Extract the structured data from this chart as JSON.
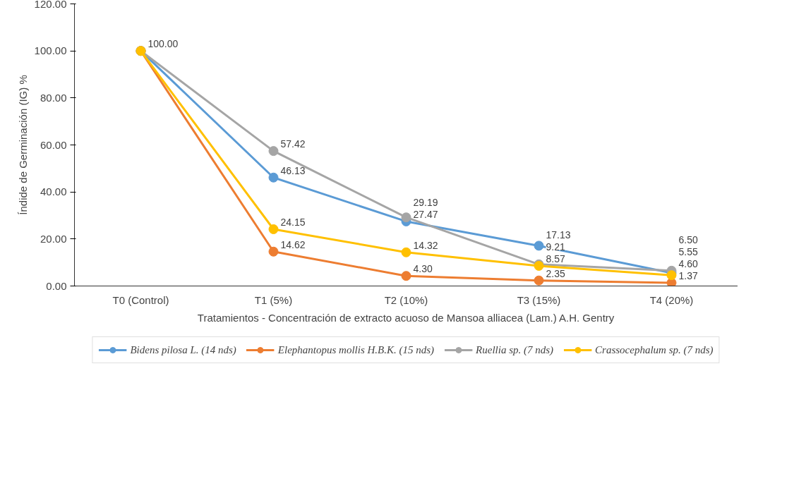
{
  "chart_data": {
    "type": "line",
    "xlabel": "Tratamientos - Concentración de extracto acuoso de Mansoa alliacea (Lam.) A.H. Gentry",
    "ylabel": "Índide de Germinación (IG) %",
    "categories": [
      "T0 (Control)",
      "T1 (5%)",
      "T2 (10%)",
      "T3 (15%)",
      "T4 (20%)"
    ],
    "ylim": [
      0,
      120
    ],
    "yticks": [
      {
        "value": 0,
        "label": "0.00"
      },
      {
        "value": 20,
        "label": "20.00"
      },
      {
        "value": 40,
        "label": "40.00"
      },
      {
        "value": 60,
        "label": "60.00"
      },
      {
        "value": 80,
        "label": "80.00"
      },
      {
        "value": 100,
        "label": "100.00"
      },
      {
        "value": 120,
        "label": "120.00"
      }
    ],
    "grid": false,
    "legend": "bottom",
    "marker": "circle",
    "line_style": "solid",
    "series": [
      {
        "name": "Bidens pilosa L. (14 nds)",
        "color": "#5b9bd5",
        "values": [
          100.0,
          46.13,
          27.47,
          17.13,
          5.55
        ],
        "value_labels": [
          "100.00",
          "46.13",
          "27.47",
          "17.13",
          "5.55"
        ]
      },
      {
        "name": "Elephantopus mollis H.B.K. (15 nds)",
        "color": "#ed7d31",
        "values": [
          100.0,
          14.62,
          4.3,
          2.35,
          1.37
        ],
        "value_labels": [
          null,
          "14.62",
          "4.30",
          "2.35",
          "1.37"
        ]
      },
      {
        "name": "Ruellia sp. (7 nds)",
        "color": "#a5a5a5",
        "values": [
          100.0,
          57.42,
          29.19,
          9.21,
          6.5
        ],
        "value_labels": [
          null,
          "57.42",
          "29.19",
          "9.21",
          "6.50"
        ]
      },
      {
        "name": "Crassocephalum sp. (7 nds)",
        "color": "#ffc000",
        "values": [
          100.0,
          24.15,
          14.32,
          8.57,
          4.6
        ],
        "value_labels": [
          null,
          "24.15",
          "14.32",
          "8.57",
          "4.60"
        ]
      }
    ]
  }
}
